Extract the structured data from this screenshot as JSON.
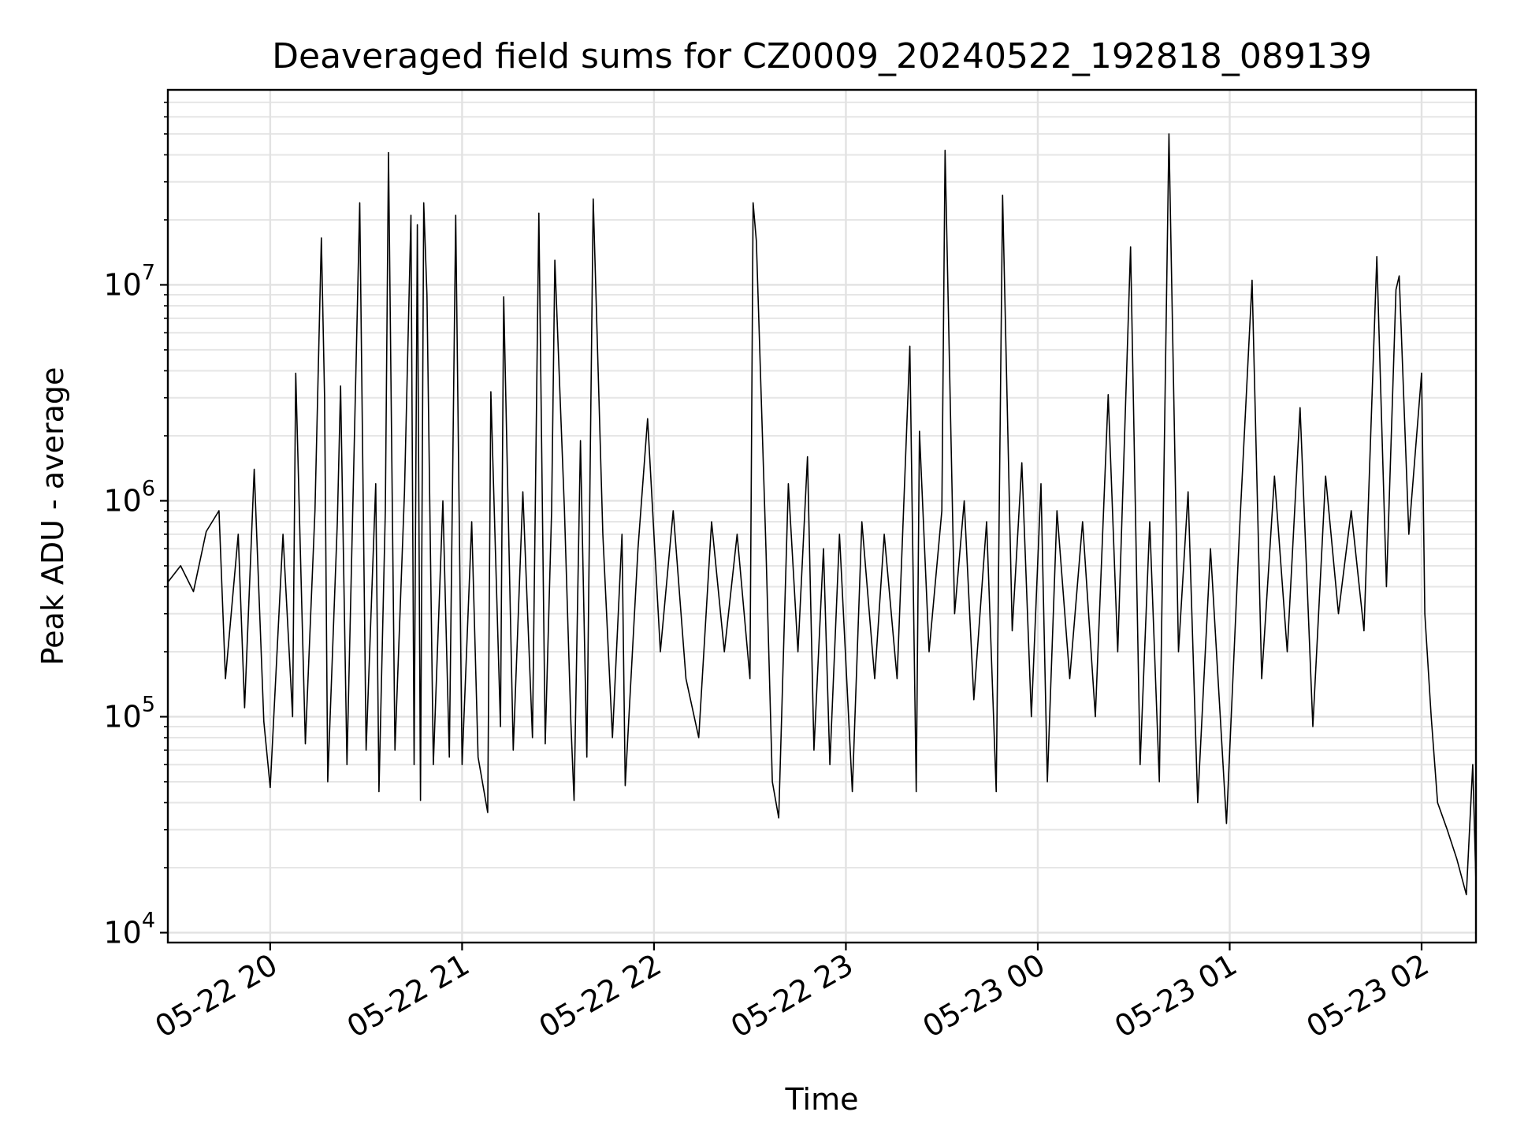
{
  "chart_data": {
    "type": "line",
    "title": "Deaveraged field sums for CZ0009_20240522_192818_089139",
    "xlabel": "Time",
    "ylabel": "Peak ADU - average",
    "x_range": [
      "2024-05-22 19:28",
      "2024-05-23 02:17"
    ],
    "yscale": "log",
    "ylim": [
      9000,
      80000000
    ],
    "grid": true,
    "line_color": "#000000",
    "x_ticks": [
      {
        "time": "2024-05-22 20:00",
        "label": "05-22 20"
      },
      {
        "time": "2024-05-22 21:00",
        "label": "05-22 21"
      },
      {
        "time": "2024-05-22 22:00",
        "label": "05-22 22"
      },
      {
        "time": "2024-05-22 23:00",
        "label": "05-22 23"
      },
      {
        "time": "2024-05-23 00:00",
        "label": "05-23 00"
      },
      {
        "time": "2024-05-23 01:00",
        "label": "05-23 01"
      },
      {
        "time": "2024-05-23 02:00",
        "label": "05-23 02"
      }
    ],
    "y_ticks": [
      {
        "value": 10000,
        "base": "10",
        "exp": "4"
      },
      {
        "value": 100000,
        "base": "10",
        "exp": "5"
      },
      {
        "value": 1000000,
        "base": "10",
        "exp": "6"
      },
      {
        "value": 10000000,
        "base": "10",
        "exp": "7"
      }
    ],
    "series": [
      {
        "points": [
          [
            "2024-05-22 19:28",
            420000
          ],
          [
            "2024-05-22 19:32",
            500000
          ],
          [
            "2024-05-22 19:36",
            380000
          ],
          [
            "2024-05-22 19:40",
            720000
          ],
          [
            "2024-05-22 19:44",
            900000
          ],
          [
            "2024-05-22 19:46",
            150000
          ],
          [
            "2024-05-22 19:50",
            700000
          ],
          [
            "2024-05-22 19:52",
            110000
          ],
          [
            "2024-05-22 19:55",
            1400000
          ],
          [
            "2024-05-22 19:58",
            95000
          ],
          [
            "2024-05-22 20:00",
            47000
          ],
          [
            "2024-05-22 20:04",
            700000
          ],
          [
            "2024-05-22 20:07",
            100000
          ],
          [
            "2024-05-22 20:08",
            3900000
          ],
          [
            "2024-05-22 20:11",
            75000
          ],
          [
            "2024-05-22 20:14",
            900000
          ],
          [
            "2024-05-22 20:16",
            16500000
          ],
          [
            "2024-05-22 20:17",
            3000000
          ],
          [
            "2024-05-22 20:18",
            50000
          ],
          [
            "2024-05-22 20:21",
            800000
          ],
          [
            "2024-05-22 20:22",
            3400000
          ],
          [
            "2024-05-22 20:24",
            60000
          ],
          [
            "2024-05-22 20:28",
            24000000
          ],
          [
            "2024-05-22 20:30",
            70000
          ],
          [
            "2024-05-22 20:33",
            1200000
          ],
          [
            "2024-05-22 20:34",
            45000
          ],
          [
            "2024-05-22 20:36",
            900000
          ],
          [
            "2024-05-22 20:37",
            41000000
          ],
          [
            "2024-05-22 20:39",
            70000
          ],
          [
            "2024-05-22 20:42",
            1100000
          ],
          [
            "2024-05-22 20:44",
            21000000
          ],
          [
            "2024-05-22 20:45",
            60000
          ],
          [
            "2024-05-22 20:46",
            19000000
          ],
          [
            "2024-05-22 20:47",
            41000
          ],
          [
            "2024-05-22 20:48",
            24000000
          ],
          [
            "2024-05-22 20:49",
            9000000
          ],
          [
            "2024-05-22 20:51",
            60000
          ],
          [
            "2024-05-22 20:54",
            1000000
          ],
          [
            "2024-05-22 20:56",
            65000
          ],
          [
            "2024-05-22 20:58",
            21000000
          ],
          [
            "2024-05-22 21:00",
            60000
          ],
          [
            "2024-05-22 21:03",
            800000
          ],
          [
            "2024-05-22 21:05",
            65000
          ],
          [
            "2024-05-22 21:08",
            36000
          ],
          [
            "2024-05-22 21:09",
            3200000
          ],
          [
            "2024-05-22 21:12",
            90000
          ],
          [
            "2024-05-22 21:13",
            8800000
          ],
          [
            "2024-05-22 21:16",
            70000
          ],
          [
            "2024-05-22 21:19",
            1100000
          ],
          [
            "2024-05-22 21:22",
            80000
          ],
          [
            "2024-05-22 21:24",
            21500000
          ],
          [
            "2024-05-22 21:26",
            75000
          ],
          [
            "2024-05-22 21:28",
            900000
          ],
          [
            "2024-05-22 21:29",
            13000000
          ],
          [
            "2024-05-22 21:32",
            900000
          ],
          [
            "2024-05-22 21:34",
            95000
          ],
          [
            "2024-05-22 21:35",
            41000
          ],
          [
            "2024-05-22 21:37",
            1900000
          ],
          [
            "2024-05-22 21:39",
            65000
          ],
          [
            "2024-05-22 21:41",
            25000000
          ],
          [
            "2024-05-22 21:44",
            700000
          ],
          [
            "2024-05-22 21:47",
            80000
          ],
          [
            "2024-05-22 21:50",
            700000
          ],
          [
            "2024-05-22 21:51",
            48000
          ],
          [
            "2024-05-22 21:55",
            600000
          ],
          [
            "2024-05-22 21:58",
            2400000
          ],
          [
            "2024-05-22 22:02",
            200000
          ],
          [
            "2024-05-22 22:06",
            900000
          ],
          [
            "2024-05-22 22:10",
            150000
          ],
          [
            "2024-05-22 22:14",
            80000
          ],
          [
            "2024-05-22 22:18",
            800000
          ],
          [
            "2024-05-22 22:22",
            200000
          ],
          [
            "2024-05-22 22:26",
            700000
          ],
          [
            "2024-05-22 22:30",
            150000
          ],
          [
            "2024-05-22 22:31",
            24000000
          ],
          [
            "2024-05-22 22:32",
            16000000
          ],
          [
            "2024-05-22 22:35",
            600000
          ],
          [
            "2024-05-22 22:37",
            50000
          ],
          [
            "2024-05-22 22:39",
            34000
          ],
          [
            "2024-05-22 22:42",
            1200000
          ],
          [
            "2024-05-22 22:45",
            200000
          ],
          [
            "2024-05-22 22:48",
            1600000
          ],
          [
            "2024-05-22 22:50",
            70000
          ],
          [
            "2024-05-22 22:53",
            600000
          ],
          [
            "2024-05-22 22:55",
            60000
          ],
          [
            "2024-05-22 22:58",
            700000
          ],
          [
            "2024-05-22 23:02",
            45000
          ],
          [
            "2024-05-22 23:05",
            800000
          ],
          [
            "2024-05-22 23:09",
            150000
          ],
          [
            "2024-05-22 23:12",
            700000
          ],
          [
            "2024-05-22 23:16",
            150000
          ],
          [
            "2024-05-22 23:20",
            5200000
          ],
          [
            "2024-05-22 23:22",
            45000
          ],
          [
            "2024-05-22 23:23",
            2100000
          ],
          [
            "2024-05-22 23:26",
            200000
          ],
          [
            "2024-05-22 23:30",
            900000
          ],
          [
            "2024-05-22 23:31",
            42000000
          ],
          [
            "2024-05-22 23:34",
            300000
          ],
          [
            "2024-05-22 23:37",
            1000000
          ],
          [
            "2024-05-22 23:40",
            120000
          ],
          [
            "2024-05-22 23:44",
            800000
          ],
          [
            "2024-05-22 23:47",
            45000
          ],
          [
            "2024-05-22 23:49",
            26000000
          ],
          [
            "2024-05-22 23:52",
            250000
          ],
          [
            "2024-05-22 23:55",
            1500000
          ],
          [
            "2024-05-22 23:58",
            100000
          ],
          [
            "2024-05-23 00:01",
            1200000
          ],
          [
            "2024-05-23 00:03",
            50000
          ],
          [
            "2024-05-23 00:06",
            900000
          ],
          [
            "2024-05-23 00:10",
            150000
          ],
          [
            "2024-05-23 00:14",
            800000
          ],
          [
            "2024-05-23 00:18",
            100000
          ],
          [
            "2024-05-23 00:22",
            3100000
          ],
          [
            "2024-05-23 00:25",
            200000
          ],
          [
            "2024-05-23 00:29",
            15000000
          ],
          [
            "2024-05-23 00:32",
            60000
          ],
          [
            "2024-05-23 00:35",
            800000
          ],
          [
            "2024-05-23 00:38",
            50000
          ],
          [
            "2024-05-23 00:41",
            50000000
          ],
          [
            "2024-05-23 00:44",
            200000
          ],
          [
            "2024-05-23 00:47",
            1100000
          ],
          [
            "2024-05-23 00:50",
            40000
          ],
          [
            "2024-05-23 00:54",
            600000
          ],
          [
            "2024-05-23 00:59",
            32000
          ],
          [
            "2024-05-23 01:03",
            700000
          ],
          [
            "2024-05-23 01:07",
            10500000
          ],
          [
            "2024-05-23 01:10",
            150000
          ],
          [
            "2024-05-23 01:14",
            1300000
          ],
          [
            "2024-05-23 01:18",
            200000
          ],
          [
            "2024-05-23 01:22",
            2700000
          ],
          [
            "2024-05-23 01:26",
            90000
          ],
          [
            "2024-05-23 01:30",
            1300000
          ],
          [
            "2024-05-23 01:34",
            300000
          ],
          [
            "2024-05-23 01:38",
            900000
          ],
          [
            "2024-05-23 01:42",
            250000
          ],
          [
            "2024-05-23 01:46",
            13500000
          ],
          [
            "2024-05-23 01:49",
            400000
          ],
          [
            "2024-05-23 01:52",
            9500000
          ],
          [
            "2024-05-23 01:53",
            11000000
          ],
          [
            "2024-05-23 01:56",
            700000
          ],
          [
            "2024-05-23 02:00",
            3900000
          ],
          [
            "2024-05-23 02:01",
            300000
          ],
          [
            "2024-05-23 02:03",
            100000
          ],
          [
            "2024-05-23 02:05",
            40000
          ],
          [
            "2024-05-23 02:08",
            30000
          ],
          [
            "2024-05-23 02:11",
            22000
          ],
          [
            "2024-05-23 02:14",
            15000
          ],
          [
            "2024-05-23 02:16",
            60000
          ],
          [
            "2024-05-23 02:17",
            17000
          ]
        ]
      }
    ]
  }
}
